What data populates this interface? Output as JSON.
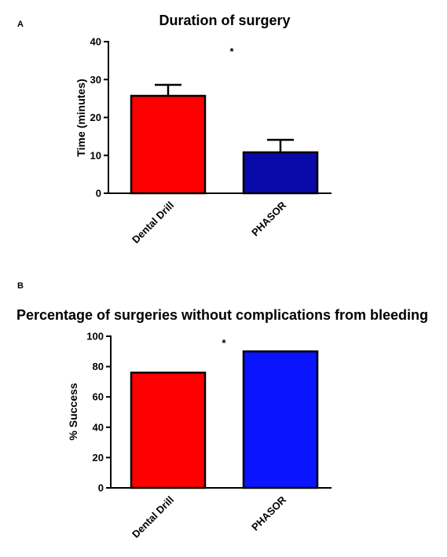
{
  "chart_data": [
    {
      "type": "bar",
      "panel_label": "A",
      "title": "Duration of surgery",
      "ylabel": "Time (minutes)",
      "ylim": [
        0,
        40
      ],
      "yticks": [
        "0",
        "10",
        "20",
        "30",
        "40"
      ],
      "categories": [
        "Dental Drill",
        "PHASOR"
      ],
      "values": [
        25.7,
        10.8
      ],
      "errors": [
        2.9,
        3.3
      ],
      "colors": [
        "#ff0000",
        "#0a0aa8"
      ],
      "annotation": "*"
    },
    {
      "type": "bar",
      "panel_label": "B",
      "title": "Percentage of surgeries without complications from bleeding",
      "ylabel": "% Success",
      "ylim": [
        0,
        100
      ],
      "yticks": [
        "0",
        "20",
        "40",
        "60",
        "80",
        "100"
      ],
      "categories": [
        "Dental Drill",
        "PHASOR"
      ],
      "values": [
        76,
        90
      ],
      "colors": [
        "#ff0000",
        "#0a14ff"
      ],
      "annotation": "*"
    }
  ]
}
